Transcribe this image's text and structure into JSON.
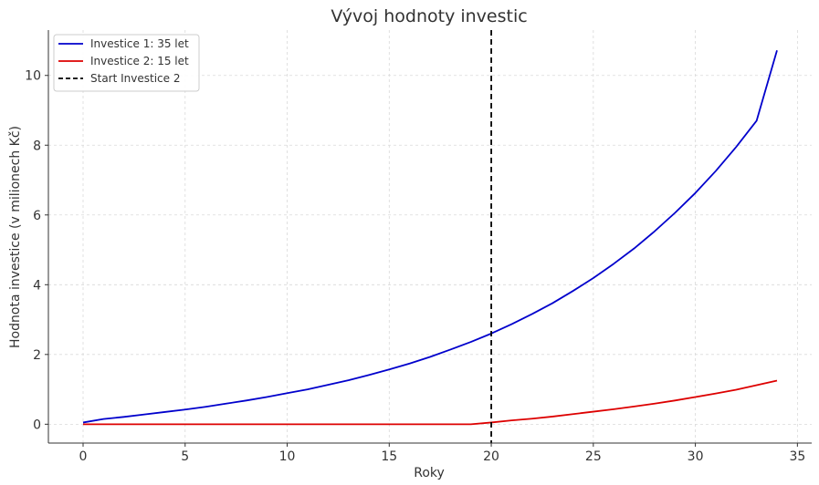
{
  "chart_data": {
    "type": "line",
    "title": "Vývoj hodnoty investic",
    "xlabel": "Roky",
    "ylabel": "Hodnota investice (v milionech Kč)",
    "xlim": [
      -1.7,
      35.7
    ],
    "ylim": [
      -0.54,
      11.3
    ],
    "xticks": [
      0,
      5,
      10,
      15,
      20,
      25,
      30,
      35
    ],
    "yticks": [
      0,
      2,
      4,
      6,
      8,
      10
    ],
    "grid": true,
    "legend_position": "top-left",
    "series": [
      {
        "name": "Investice 1: 35 let",
        "color": "#0000cc",
        "style": "solid",
        "x": [
          0,
          1,
          2,
          3,
          4,
          5,
          6,
          7,
          8,
          9,
          10,
          11,
          12,
          13,
          14,
          15,
          16,
          17,
          18,
          19,
          20,
          21,
          22,
          23,
          24,
          25,
          26,
          27,
          28,
          29,
          30,
          31,
          32,
          33,
          34
        ],
        "y": [
          0.05,
          0.15,
          0.21,
          0.28,
          0.35,
          0.42,
          0.5,
          0.59,
          0.68,
          0.78,
          0.89,
          1.0,
          1.13,
          1.26,
          1.41,
          1.57,
          1.74,
          1.93,
          2.14,
          2.36,
          2.6,
          2.87,
          3.16,
          3.47,
          3.82,
          4.19,
          4.6,
          5.04,
          5.53,
          6.06,
          6.63,
          7.26,
          7.95,
          8.7,
          10.72
        ]
      },
      {
        "name": "Investice 2: 15 let",
        "color": "#dd0000",
        "style": "solid",
        "x": [
          0,
          19,
          20,
          21,
          22,
          23,
          24,
          25,
          26,
          27,
          28,
          29,
          30,
          31,
          32,
          33,
          34
        ],
        "y": [
          0,
          0,
          0.05,
          0.11,
          0.16,
          0.22,
          0.29,
          0.36,
          0.43,
          0.51,
          0.59,
          0.68,
          0.78,
          0.88,
          0.99,
          1.12,
          1.25
        ]
      },
      {
        "name": "Start Investice 2",
        "color": "#000000",
        "style": "dashed",
        "type": "vline",
        "x": [
          20
        ]
      }
    ]
  }
}
